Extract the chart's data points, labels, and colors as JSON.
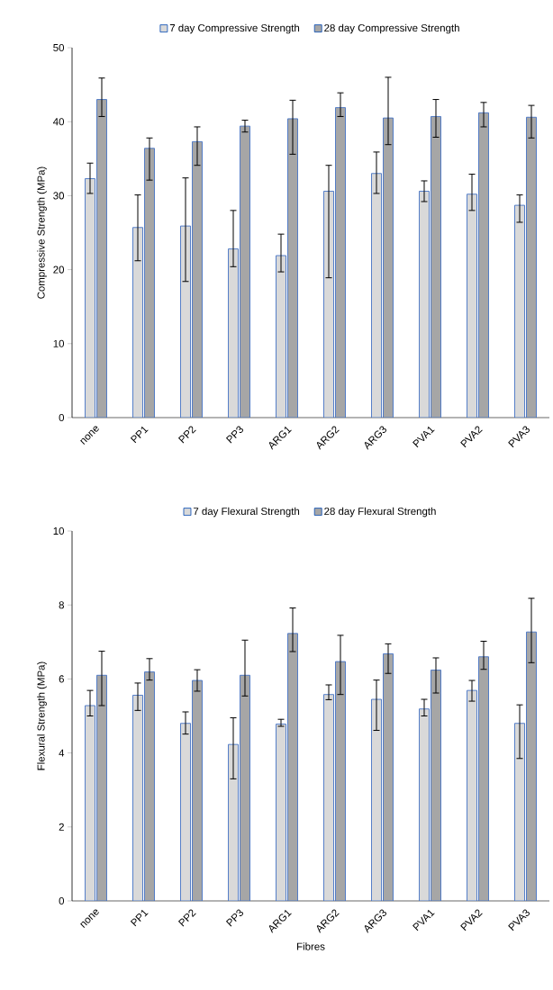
{
  "chart_data": [
    {
      "type": "bar",
      "ylabel": "Compressive Strength (MPa)",
      "categories": [
        "none",
        "PP1",
        "PP2",
        "PP3",
        "ARG1",
        "ARG2",
        "ARG3",
        "PVA1",
        "PVA2",
        "PVA3"
      ],
      "ylim": [
        0,
        50
      ],
      "yticks": [
        0,
        10,
        20,
        30,
        40,
        50
      ],
      "legend": "top",
      "series": [
        {
          "name": "7 day Compressive Strength",
          "color": "#d9d9d9",
          "values": [
            32.3,
            25.7,
            25.9,
            22.8,
            21.9,
            30.6,
            33.0,
            30.6,
            30.2,
            28.7
          ],
          "errors": [
            [
              30.3,
              34.4
            ],
            [
              21.2,
              30.1
            ],
            [
              18.4,
              32.4
            ],
            [
              20.4,
              28.0
            ],
            [
              19.7,
              24.8
            ],
            [
              18.9,
              34.1
            ],
            [
              30.3,
              35.9
            ],
            [
              29.2,
              32.0
            ],
            [
              28.0,
              32.9
            ],
            [
              26.4,
              30.1
            ]
          ]
        },
        {
          "name": "28 day Compressive Strength",
          "color": "#a6a6a6",
          "values": [
            43.0,
            36.4,
            37.3,
            39.4,
            40.4,
            41.9,
            40.5,
            40.7,
            41.2,
            40.6
          ],
          "errors": [
            [
              40.7,
              45.9
            ],
            [
              32.1,
              37.8
            ],
            [
              34.1,
              39.3
            ],
            [
              38.6,
              40.2
            ],
            [
              35.6,
              42.9
            ],
            [
              40.7,
              43.9
            ],
            [
              36.9,
              46.0
            ],
            [
              37.9,
              43.0
            ],
            [
              39.3,
              42.6
            ],
            [
              37.8,
              42.2
            ]
          ]
        }
      ]
    },
    {
      "type": "bar",
      "ylabel": "Flexural Strength (MPa)",
      "xlabel": "Fibres",
      "categories": [
        "none",
        "PP1",
        "PP2",
        "PP3",
        "ARG1",
        "ARG2",
        "ARG3",
        "PVA1",
        "PVA2",
        "PVA3"
      ],
      "ylim": [
        0,
        10
      ],
      "yticks": [
        0,
        2,
        4,
        6,
        8,
        10
      ],
      "legend": "top",
      "series": [
        {
          "name": "7 day Flexural Strength",
          "color": "#d9d9d9",
          "values": [
            5.28,
            5.56,
            4.8,
            4.23,
            4.78,
            5.58,
            5.45,
            5.19,
            5.69,
            4.8
          ],
          "errors": [
            [
              5.0,
              5.69
            ],
            [
              5.15,
              5.89
            ],
            [
              4.51,
              5.11
            ],
            [
              3.3,
              4.95
            ],
            [
              4.72,
              4.91
            ],
            [
              5.44,
              5.84
            ],
            [
              4.61,
              5.97
            ],
            [
              5.0,
              5.45
            ],
            [
              5.4,
              5.96
            ],
            [
              3.85,
              5.3
            ]
          ]
        },
        {
          "name": "28 day Flexural Strength",
          "color": "#a6a6a6",
          "values": [
            6.1,
            6.19,
            5.96,
            6.1,
            7.23,
            6.47,
            6.68,
            6.24,
            6.6,
            7.27
          ],
          "errors": [
            [
              5.28,
              6.75
            ],
            [
              5.97,
              6.55
            ],
            [
              5.67,
              6.25
            ],
            [
              5.54,
              7.05
            ],
            [
              6.74,
              7.92
            ],
            [
              5.58,
              7.18
            ],
            [
              6.15,
              6.95
            ],
            [
              5.62,
              6.57
            ],
            [
              6.26,
              7.02
            ],
            [
              6.44,
              8.18
            ]
          ]
        }
      ]
    }
  ]
}
